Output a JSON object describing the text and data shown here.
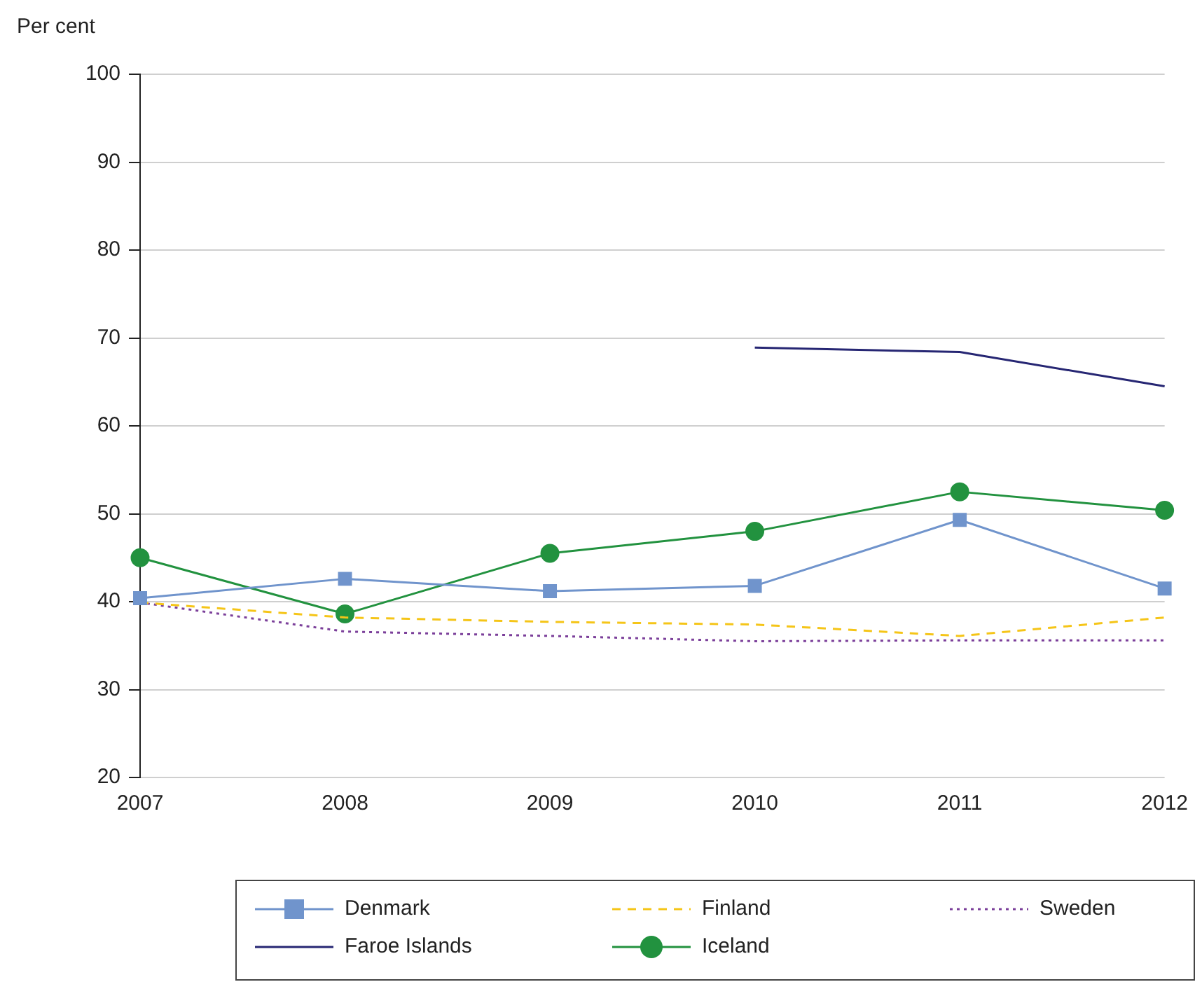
{
  "chart_data": {
    "type": "line",
    "ylabel": "Per cent",
    "categories": [
      "2007",
      "2008",
      "2009",
      "2010",
      "2011",
      "2012"
    ],
    "ylim": [
      20,
      100
    ],
    "yticks": [
      20,
      30,
      40,
      50,
      60,
      70,
      80,
      90,
      100
    ],
    "grid": "y",
    "legend": "bottom",
    "series": [
      {
        "name": "Denmark",
        "color": "#7094cc",
        "marker": "square",
        "line_style": "solid",
        "values": [
          40.4,
          42.6,
          41.2,
          41.8,
          49.3,
          41.5
        ]
      },
      {
        "name": "Finland",
        "color": "#f5c518",
        "marker": "none",
        "line_style": "dashed",
        "values": [
          39.9,
          38.2,
          37.7,
          37.4,
          36.1,
          38.2
        ]
      },
      {
        "name": "Sweden",
        "color": "#7b3f9a",
        "marker": "none",
        "line_style": "dotted",
        "values": [
          39.9,
          36.6,
          36.1,
          35.5,
          35.6,
          35.6
        ]
      },
      {
        "name": "Faroe Islands",
        "color": "#262673",
        "marker": "none",
        "line_style": "solid",
        "values": [
          null,
          null,
          null,
          68.9,
          68.4,
          64.5
        ]
      },
      {
        "name": "Iceland",
        "color": "#22923f",
        "marker": "circle",
        "line_style": "solid",
        "values": [
          45.0,
          38.6,
          45.5,
          48.0,
          52.5,
          50.4
        ]
      }
    ]
  }
}
